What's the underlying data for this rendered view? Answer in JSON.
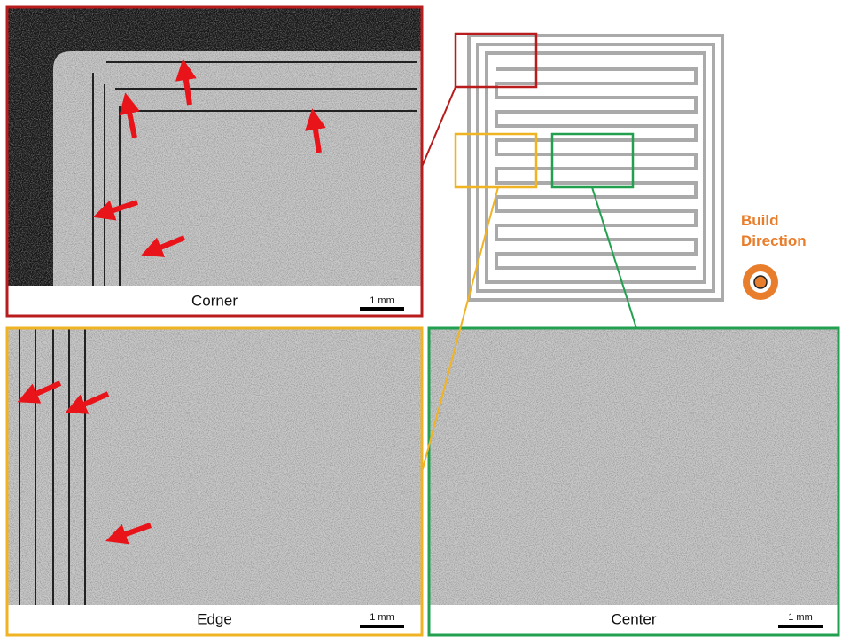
{
  "panels": [
    {
      "label": "Corner",
      "scale_bar": "1 mm"
    },
    {
      "label": "Edge",
      "scale_bar": "1 mm"
    },
    {
      "label": "Center",
      "scale_bar": "1 mm"
    }
  ],
  "diagram": {
    "build_direction": [
      "Build",
      "Direction"
    ]
  }
}
